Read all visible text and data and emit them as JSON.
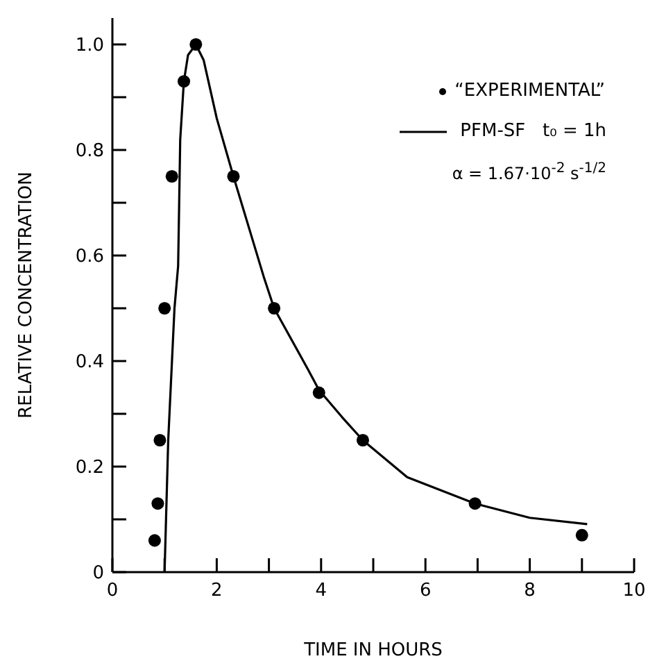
{
  "chart_data": {
    "type": "scatter",
    "xlabel": "TIME IN HOURS",
    "ylabel": "RELATIVE CONCENTRATION",
    "xlim": [
      0,
      10
    ],
    "xticks": [
      0,
      {
        "value": 1,
        "label": null
      },
      2,
      {
        "value": 3,
        "label": null
      },
      4,
      {
        "value": 5,
        "label": null
      },
      6,
      {
        "value": 7,
        "label": null
      },
      8,
      {
        "value": 9,
        "label": null
      },
      10
    ],
    "ylim": [
      0,
      1.05
    ],
    "yticks": [
      {
        "value": 0,
        "label": "0"
      },
      {
        "value": 0.1,
        "label": null
      },
      {
        "value": 0.2,
        "label": "0.2"
      },
      {
        "value": 0.3,
        "label": null
      },
      {
        "value": 0.4,
        "label": "0.4"
      },
      {
        "value": 0.5,
        "label": null
      },
      {
        "value": 0.6,
        "label": "0.6"
      },
      {
        "value": 0.7,
        "label": null
      },
      {
        "value": 0.8,
        "label": "0.8"
      },
      {
        "value": 0.9,
        "label": null
      },
      {
        "value": 1,
        "label": "1.0"
      }
    ],
    "grid": false,
    "legend": "top right",
    "annotations": [
      "α = 1.67·10$^{-2}$ s$^{-1/2}$"
    ],
    "series": [
      {
        "name": "“EXPERIMENTAL”",
        "marker": "circle",
        "color": "#000000",
        "x": [
          0.81,
          0.87,
          0.91,
          1.0,
          1.14,
          1.37,
          1.6,
          2.32,
          3.1,
          3.96,
          4.8,
          6.95,
          9.0
        ],
        "values": [
          0.06,
          0.13,
          0.25,
          0.5,
          0.75,
          0.93,
          1.0,
          0.75,
          0.5,
          0.34,
          0.25,
          0.13,
          0.07
        ]
      },
      {
        "name": "PFM-SF   t₀ = 1h",
        "type": "line",
        "marker": "none",
        "line_style": "solid",
        "color": "#000000",
        "x": [
          1.0,
          1.07,
          1.19,
          1.26,
          1.3,
          1.37,
          1.45,
          1.6,
          1.75,
          2.0,
          2.32,
          2.9,
          3.1,
          3.75,
          3.96,
          4.4,
          4.8,
          5.65,
          6.95,
          8.0,
          9.1
        ],
        "values": [
          0,
          0.25,
          0.5,
          0.58,
          0.82,
          0.93,
          0.98,
          1.0,
          0.97,
          0.86,
          0.75,
          0.56,
          0.5,
          0.384,
          0.345,
          0.294,
          0.25,
          0.18,
          0.13,
          0.103,
          0.091
        ]
      }
    ]
  }
}
